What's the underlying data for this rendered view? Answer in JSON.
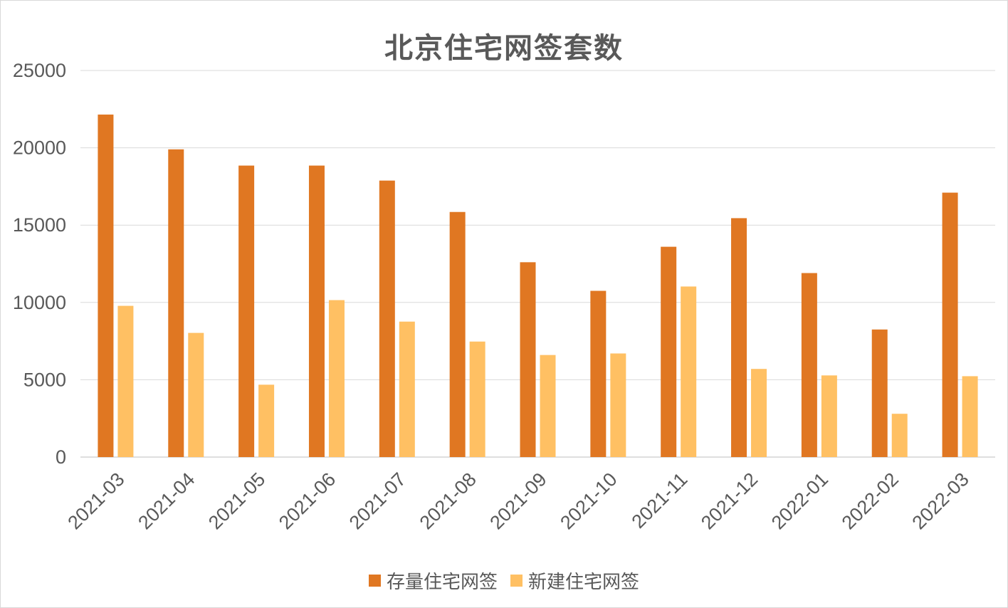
{
  "chart_data": {
    "type": "bar",
    "title": "北京住宅网签套数",
    "categories": [
      "2021-03",
      "2021-04",
      "2021-05",
      "2021-06",
      "2021-07",
      "2021-08",
      "2021-09",
      "2021-10",
      "2021-11",
      "2021-12",
      "2022-01",
      "2022-02",
      "2022-03"
    ],
    "series": [
      {
        "name": "存量住宅网签",
        "color": "#e07722",
        "values": [
          22150,
          19900,
          18850,
          18850,
          17880,
          15850,
          12600,
          10750,
          13600,
          15450,
          11900,
          8250,
          17100
        ]
      },
      {
        "name": "新建住宅网签",
        "color": "#ffc063",
        "values": [
          9780,
          8030,
          4680,
          10150,
          8760,
          7470,
          6600,
          6700,
          11030,
          5700,
          5280,
          2800,
          5230
        ]
      }
    ],
    "ylim": [
      0,
      25000
    ],
    "yticks": [
      0,
      5000,
      10000,
      15000,
      20000,
      25000
    ],
    "grid": true,
    "legend_position": "bottom"
  }
}
